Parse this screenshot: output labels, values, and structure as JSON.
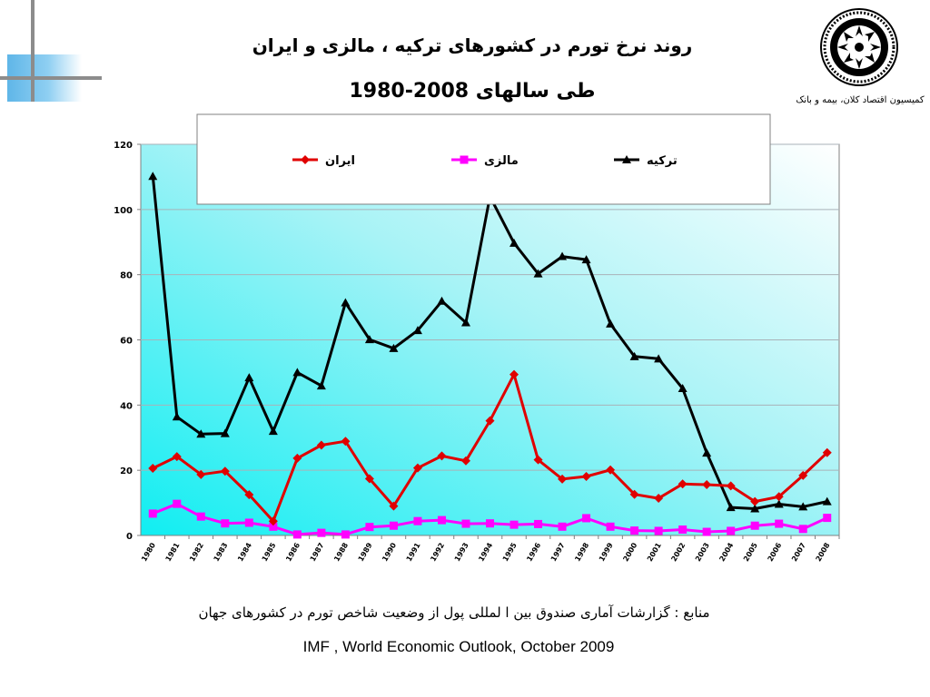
{
  "slide": {
    "title_line1": "روند نرخ تورم در کشورهای ترکیه ، مالزی و ایران",
    "title_line2": "طی سالهای 2008-1980",
    "logo_caption": "کمیسیون اقتصاد کلان، بیمه و بانک",
    "source_fa": "منابع : گزارشات آماری صندوق بین ا لمللی  پول از وضعیت شاخص تورم  در کشورهای جهان",
    "source_en": "IMF , World Economic Outlook, October 2009"
  },
  "chart_data": {
    "type": "line",
    "x": [
      "1980",
      "1981",
      "1982",
      "1983",
      "1984",
      "1985",
      "1986",
      "1987",
      "1988",
      "1989",
      "1990",
      "1991",
      "1992",
      "1993",
      "1994",
      "1995",
      "1996",
      "1997",
      "1998",
      "1999",
      "2000",
      "2001",
      "2002",
      "2003",
      "2004",
      "2005",
      "2006",
      "2007",
      "2008"
    ],
    "ylim": [
      0,
      120
    ],
    "yticks": [
      0,
      20,
      40,
      60,
      80,
      100,
      120
    ],
    "grid": true,
    "legend_position": "top",
    "series": [
      {
        "name": "ترکیه",
        "color": "#000000",
        "marker": "triangle",
        "values": [
          110.2,
          36.4,
          31.1,
          31.3,
          48.4,
          32.0,
          50.0,
          45.9,
          71.4,
          60.1,
          57.4,
          62.9,
          71.9,
          65.3,
          104.0,
          89.7,
          80.3,
          85.6,
          84.6,
          64.9,
          54.9,
          54.2,
          45.1,
          25.3,
          8.6,
          8.2,
          9.6,
          8.8,
          10.4
        ]
      },
      {
        "name": "مالزی",
        "color": "#ff00ff",
        "marker": "square",
        "values": [
          6.7,
          9.7,
          5.8,
          3.7,
          3.9,
          2.7,
          0.3,
          0.8,
          0.3,
          2.6,
          3.0,
          4.4,
          4.7,
          3.6,
          3.7,
          3.3,
          3.5,
          2.7,
          5.3,
          2.7,
          1.5,
          1.4,
          1.8,
          1.1,
          1.4,
          3.0,
          3.6,
          2.0,
          5.4
        ]
      },
      {
        "name": "ایران",
        "color": "#e00000",
        "marker": "diamond",
        "values": [
          20.6,
          24.2,
          18.7,
          19.7,
          12.5,
          4.4,
          23.7,
          27.7,
          28.9,
          17.4,
          9.0,
          20.7,
          24.4,
          22.9,
          35.2,
          49.4,
          23.2,
          17.3,
          18.1,
          20.1,
          12.6,
          11.4,
          15.8,
          15.6,
          15.2,
          10.4,
          11.9,
          18.4,
          25.4
        ]
      }
    ]
  }
}
